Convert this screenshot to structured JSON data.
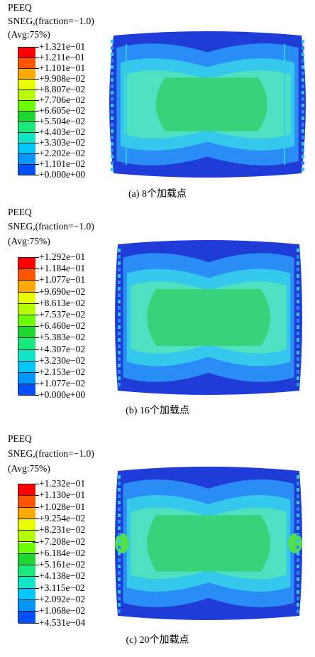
{
  "panels": [
    {
      "header": {
        "variable": "PEEQ",
        "section": "SNEG,(fraction=−1.0)",
        "averaging": "(Avg:75%)"
      },
      "legend_values": [
        "+1.321e−01",
        "+1.211e−01",
        "+1.101e−01",
        "+9.908e−02",
        "+8.807e−02",
        "+7.706e−02",
        "+6.605e−02",
        "+5.504e−02",
        "+4.403e−02",
        "+3.303e−02",
        "+2.202e−02",
        "+1.101e−02",
        "+0.000e+00"
      ],
      "caption": "(a) 8个加载点"
    },
    {
      "header": {
        "variable": "PEEQ",
        "section": "SNEG,(fraction=−1.0)",
        "averaging": "(Avg:75%)"
      },
      "legend_values": [
        "+1.292e−01",
        "+1.184e−01",
        "+1.077e−01",
        "+9.690e−02",
        "+8.613e−02",
        "+7.537e−02",
        "+6.460e−02",
        "+5.383e−02",
        "+4.307e−02",
        "+3.230e−02",
        "+2.153e−02",
        "+1.077e−02",
        "+0.000e+00"
      ],
      "caption": "(b) 16个加载点"
    },
    {
      "header": {
        "variable": "PEEQ",
        "section": "SNEG,(fraction=−1.0)",
        "averaging": "(Avg:75%)"
      },
      "legend_values": [
        "+1.232e−01",
        "+1.130e−01",
        "+1.028e−01",
        "+9.254e−02",
        "+8.231e−02",
        "+7.208e−02",
        "+6.184e−02",
        "+5.161e−02",
        "+4.138e−02",
        "+3.115e−02",
        "+2.092e−02",
        "+1.068e−02",
        "+4.531e−04"
      ],
      "caption": "(c) 20个加载点"
    }
  ],
  "legend_colors": [
    "#ff0000",
    "#ff5400",
    "#ffa800",
    "#e9ff00",
    "#b5ff00",
    "#6bff00",
    "#1dd82e",
    "#19e87a",
    "#14e5c5",
    "#00c8ff",
    "#0096ff",
    "#0050ff",
    "#0000ff"
  ],
  "contour_colors": {
    "outer": "#1f3cd8",
    "band1": "#2a8cf5",
    "band2": "#34c8ec",
    "band3": "#4fe0c2",
    "core": "#38d27a",
    "core_hot": "#52e04c",
    "edge": "#1638c8"
  }
}
